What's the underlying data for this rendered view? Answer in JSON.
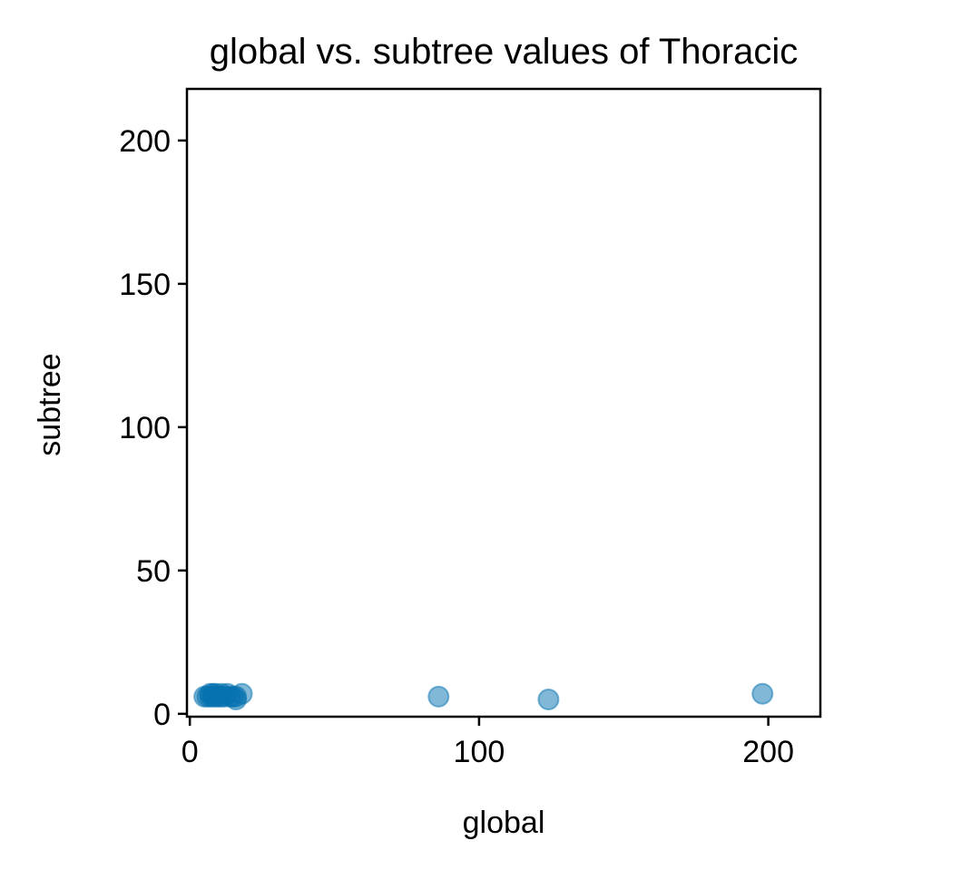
{
  "chart_data": {
    "type": "scatter",
    "title": "global vs. subtree values of Thoracic",
    "xlabel": "global",
    "ylabel": "subtree",
    "xlim": [
      -1,
      218
    ],
    "ylim": [
      -1,
      218
    ],
    "xticks": [
      0,
      100,
      200
    ],
    "yticks": [
      0,
      50,
      100,
      150,
      200
    ],
    "xtick_labels": [
      "0",
      "100",
      "200"
    ],
    "ytick_labels": [
      "0",
      "50",
      "100",
      "150",
      "200"
    ],
    "grid": false,
    "marker_color": "#0571b0",
    "marker_opacity": 0.5,
    "points": [
      {
        "x": 5,
        "y": 6
      },
      {
        "x": 6,
        "y": 6
      },
      {
        "x": 7,
        "y": 7
      },
      {
        "x": 7,
        "y": 6
      },
      {
        "x": 8,
        "y": 6
      },
      {
        "x": 8,
        "y": 7
      },
      {
        "x": 9,
        "y": 6
      },
      {
        "x": 9,
        "y": 7
      },
      {
        "x": 10,
        "y": 6
      },
      {
        "x": 11,
        "y": 6
      },
      {
        "x": 11,
        "y": 7
      },
      {
        "x": 12,
        "y": 6
      },
      {
        "x": 13,
        "y": 7
      },
      {
        "x": 14,
        "y": 6
      },
      {
        "x": 15,
        "y": 6
      },
      {
        "x": 16,
        "y": 5
      },
      {
        "x": 16,
        "y": 6
      },
      {
        "x": 18,
        "y": 7
      },
      {
        "x": 86,
        "y": 6
      },
      {
        "x": 124,
        "y": 5
      },
      {
        "x": 198,
        "y": 7
      }
    ]
  }
}
